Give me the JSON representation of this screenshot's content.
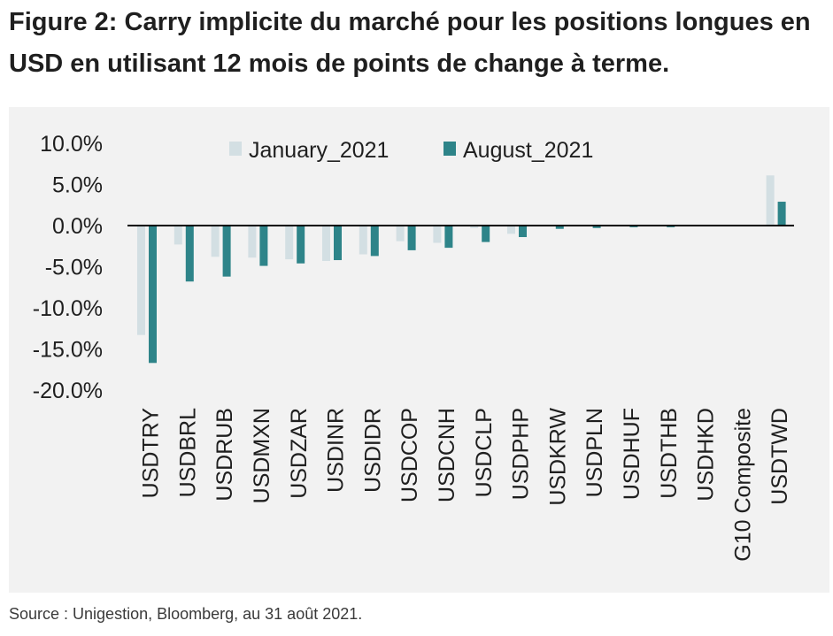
{
  "title": "Figure 2: Carry implicite du marché pour les positions longues en USD en utilisant 12 mois de points de change à terme.",
  "source": "Source : Unigestion, Bloomberg, au 31 août 2021.",
  "colors": {
    "January_2021": "#d3dfe3",
    "August_2021": "#2e8489",
    "background": "#f2f2f2",
    "axis": "#000000"
  },
  "chart_data": {
    "type": "bar",
    "categories": [
      "USDTRY",
      "USDBRL",
      "USDRUB",
      "USDMXN",
      "USDZAR",
      "USDINR",
      "USDIDR",
      "USDCOP",
      "USDCNH",
      "USDCLP",
      "USDPHP",
      "USDKRW",
      "USDPLN",
      "USDHUF",
      "USDTHB",
      "USDHKD",
      "G10 Composite",
      "USDTWD"
    ],
    "series": [
      {
        "name": "January_2021",
        "values": [
          -13.3,
          -2.3,
          -3.8,
          -3.9,
          -4.1,
          -4.3,
          -3.5,
          -1.9,
          -2.1,
          -0.3,
          -1.0,
          0.0,
          0.0,
          0.0,
          0.0,
          0.0,
          0.0,
          6.1
        ]
      },
      {
        "name": "August_2021",
        "values": [
          -16.7,
          -6.8,
          -6.2,
          -4.9,
          -4.6,
          -4.2,
          -3.7,
          -3.0,
          -2.7,
          -2.0,
          -1.4,
          -0.4,
          -0.3,
          -0.2,
          -0.2,
          -0.1,
          -0.1,
          2.9
        ]
      }
    ],
    "ylim": [
      -20,
      10
    ],
    "yticks": [
      "10.0%",
      "5.0%",
      "0.0%",
      "-5.0%",
      "-10.0%",
      "-15.0%",
      "-20.0%"
    ],
    "ytick_values": [
      10,
      5,
      0,
      -5,
      -10,
      -15,
      -20
    ],
    "legend_position": "top-center",
    "grid": false,
    "xlabel": "",
    "ylabel": ""
  }
}
